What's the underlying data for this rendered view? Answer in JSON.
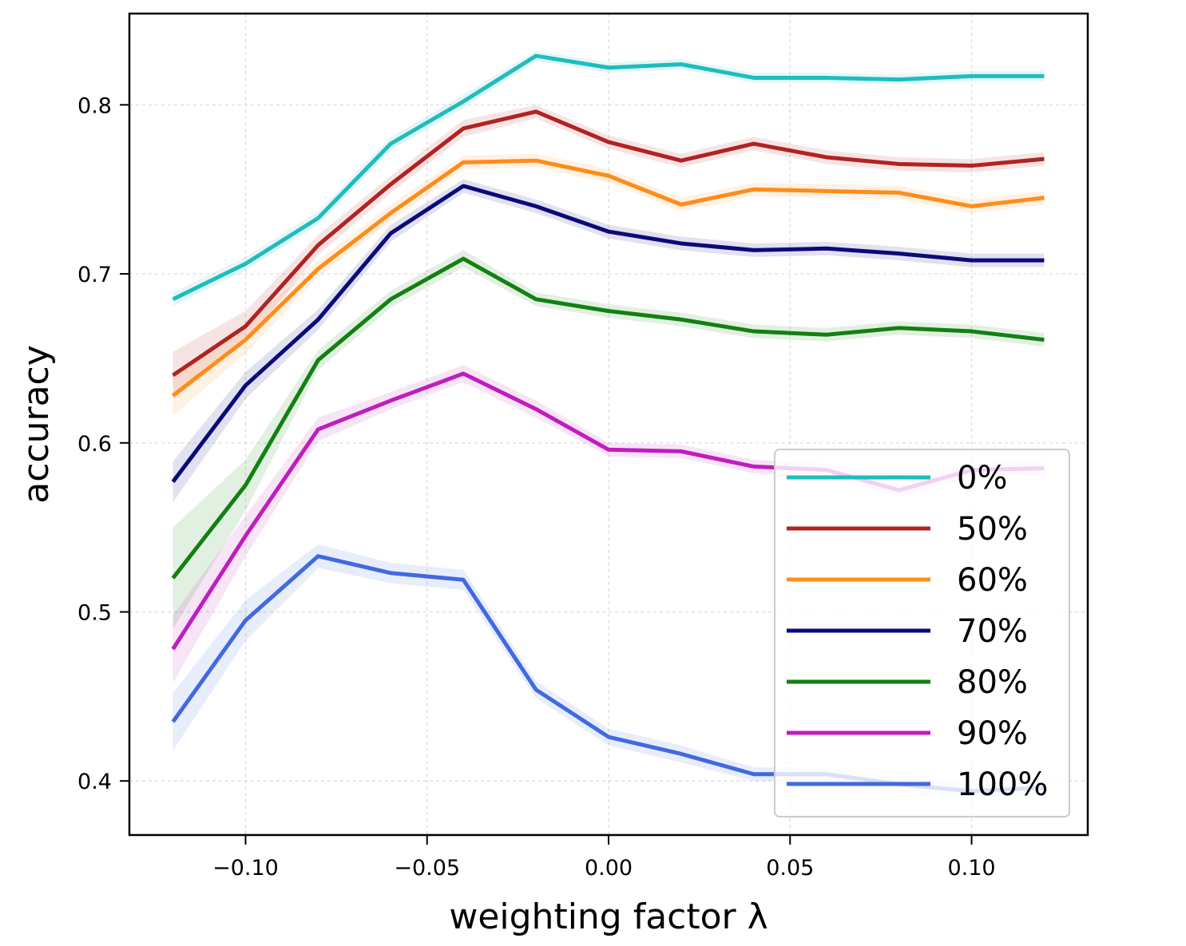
{
  "chart_data": {
    "type": "line",
    "xlabel": "weighting factor λ",
    "ylabel": "accuracy",
    "xlim": [
      -0.132,
      0.132
    ],
    "ylim": [
      0.368,
      0.854
    ],
    "xticks": [
      -0.1,
      -0.05,
      0.0,
      0.05,
      0.1
    ],
    "xtick_labels": [
      "−0.10",
      "−0.05",
      "0.00",
      "0.05",
      "0.10"
    ],
    "yticks": [
      0.4,
      0.5,
      0.6,
      0.7,
      0.8
    ],
    "ytick_labels": [
      "0.4",
      "0.5",
      "0.6",
      "0.7",
      "0.8"
    ],
    "grid": true,
    "legend_position": "lower-right",
    "x": [
      -0.12,
      -0.1,
      -0.08,
      -0.06,
      -0.04,
      -0.02,
      0.0,
      0.02,
      0.04,
      0.06,
      0.08,
      0.1,
      0.12
    ],
    "series": [
      {
        "name": "0%",
        "color": "#1ebdbd",
        "values": [
          0.685,
          0.706,
          0.733,
          0.777,
          0.802,
          0.829,
          0.822,
          0.824,
          0.816,
          0.816,
          0.815,
          0.817,
          0.817
        ],
        "band": [
          0.004,
          0.004,
          0.004,
          0.004,
          0.004,
          0.003,
          0.003,
          0.003,
          0.003,
          0.003,
          0.003,
          0.003,
          0.003
        ]
      },
      {
        "name": "50%",
        "color": "#b22222",
        "values": [
          0.64,
          0.669,
          0.717,
          0.753,
          0.786,
          0.796,
          0.778,
          0.767,
          0.777,
          0.769,
          0.765,
          0.764,
          0.768
        ],
        "band": [
          0.014,
          0.009,
          0.006,
          0.005,
          0.005,
          0.004,
          0.004,
          0.004,
          0.004,
          0.004,
          0.004,
          0.004,
          0.004
        ]
      },
      {
        "name": "60%",
        "color": "#ff8c1a",
        "values": [
          0.628,
          0.661,
          0.703,
          0.736,
          0.766,
          0.767,
          0.758,
          0.741,
          0.75,
          0.749,
          0.748,
          0.74,
          0.745
        ],
        "band": [
          0.012,
          0.008,
          0.005,
          0.005,
          0.004,
          0.004,
          0.004,
          0.004,
          0.004,
          0.004,
          0.004,
          0.004,
          0.004
        ]
      },
      {
        "name": "70%",
        "color": "#0a0a7a",
        "values": [
          0.577,
          0.634,
          0.673,
          0.724,
          0.752,
          0.74,
          0.725,
          0.718,
          0.714,
          0.715,
          0.712,
          0.708,
          0.708
        ],
        "band": [
          0.012,
          0.008,
          0.006,
          0.005,
          0.004,
          0.004,
          0.004,
          0.004,
          0.004,
          0.004,
          0.004,
          0.004,
          0.004
        ]
      },
      {
        "name": "80%",
        "color": "#128012",
        "values": [
          0.52,
          0.575,
          0.649,
          0.685,
          0.709,
          0.685,
          0.678,
          0.673,
          0.666,
          0.664,
          0.668,
          0.666,
          0.661
        ],
        "band": [
          0.03,
          0.015,
          0.006,
          0.005,
          0.005,
          0.004,
          0.004,
          0.004,
          0.004,
          0.004,
          0.004,
          0.004,
          0.004
        ]
      },
      {
        "name": "90%",
        "color": "#bf1dbf",
        "values": [
          0.478,
          0.545,
          0.608,
          0.625,
          0.641,
          0.62,
          0.596,
          0.595,
          0.586,
          0.584,
          0.572,
          0.584,
          0.585
        ],
        "band": [
          0.02,
          0.012,
          0.007,
          0.005,
          0.005,
          0.005,
          0.004,
          0.004,
          0.004,
          0.004,
          0.004,
          0.004,
          0.004
        ]
      },
      {
        "name": "100%",
        "color": "#4169e1",
        "values": [
          0.435,
          0.495,
          0.533,
          0.523,
          0.519,
          0.454,
          0.426,
          0.416,
          0.404,
          0.404,
          0.398,
          0.394,
          0.396
        ],
        "band": [
          0.017,
          0.012,
          0.007,
          0.006,
          0.006,
          0.005,
          0.005,
          0.005,
          0.004,
          0.004,
          0.004,
          0.004,
          0.004
        ]
      }
    ]
  }
}
